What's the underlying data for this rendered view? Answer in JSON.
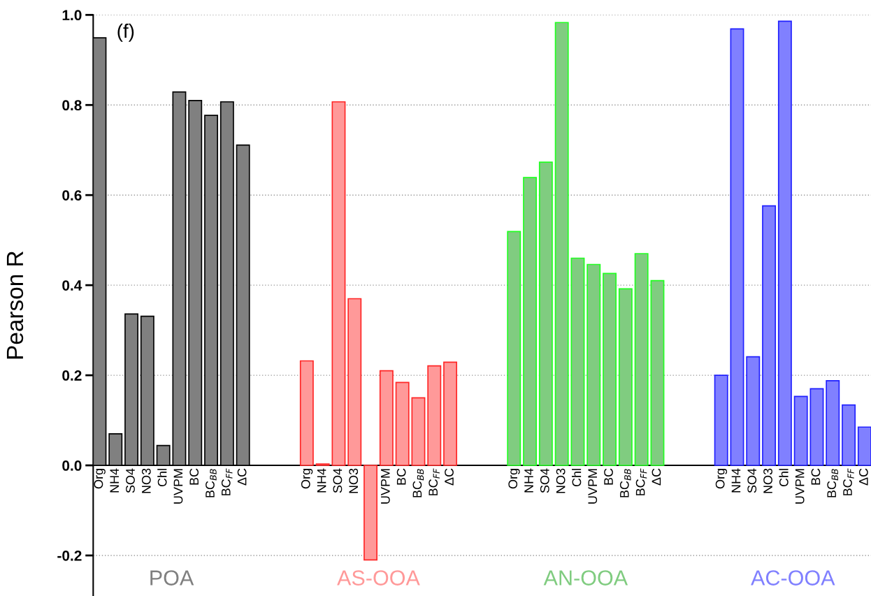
{
  "chart_data": {
    "type": "bar",
    "ylabel": "Pearson R",
    "annotations": [
      "(f)"
    ],
    "categories": [
      "Org",
      "NH4",
      "SO4",
      "NO3",
      "Chl",
      "UVPM",
      "BC",
      "BC$_{BB}$",
      "BC$_{FF}$",
      "ΔC",
      null,
      null,
      null,
      "Org",
      "NH4",
      "SO4",
      "NO3",
      null,
      "UVPM",
      "BC",
      "BC$_{BB}$",
      "BC$_{FF}$",
      "ΔC",
      null,
      null,
      null,
      "Org",
      "NH4",
      "SO4",
      "NO3",
      "Chl",
      "UVPM",
      "BC",
      "BC$_{BB}$",
      "BC$_{FF}$",
      "ΔC",
      null,
      null,
      null,
      "Org",
      "NH4",
      "SO4",
      "NO3",
      "Chl",
      "UVPM",
      "BC",
      "BC$_{BB}$",
      "BC$_{FF}$",
      "ΔC"
    ],
    "series": [
      {
        "name": "POA",
        "color": "#808080",
        "values": [
          0.949,
          0.07,
          0.336,
          0.331,
          0.044,
          0.829,
          0.81,
          0.777,
          0.807,
          0.711,
          null,
          null,
          null,
          null,
          null,
          null,
          null,
          null,
          null,
          null,
          null,
          null,
          null,
          null,
          null,
          null,
          null,
          null,
          null,
          null,
          null,
          null,
          null,
          null,
          null,
          null,
          null,
          null,
          null,
          null,
          null,
          null,
          null,
          null,
          null,
          null,
          null,
          null,
          null
        ]
      },
      {
        "name": "AS-OOA",
        "color": "#ff9999",
        "values": [
          null,
          null,
          null,
          null,
          null,
          null,
          null,
          null,
          null,
          null,
          null,
          null,
          null,
          0.232,
          0.003,
          0.807,
          0.37,
          -0.21,
          0.21,
          0.184,
          0.15,
          0.221,
          0.229,
          null,
          null,
          null,
          null,
          null,
          null,
          null,
          null,
          null,
          null,
          null,
          null,
          null,
          null,
          null,
          null,
          null,
          null,
          null,
          null,
          null,
          null,
          null,
          null,
          null,
          null
        ]
      },
      {
        "name": "AN-OOA",
        "color": "#80cc80",
        "values": [
          null,
          null,
          null,
          null,
          null,
          null,
          null,
          null,
          null,
          null,
          null,
          null,
          null,
          null,
          null,
          null,
          null,
          null,
          null,
          null,
          null,
          null,
          null,
          null,
          null,
          null,
          0.519,
          0.639,
          0.673,
          0.983,
          0.46,
          0.446,
          0.426,
          0.392,
          0.47,
          0.41,
          null,
          null,
          null,
          null,
          null,
          null,
          null,
          null,
          null,
          null,
          null,
          null,
          null
        ]
      },
      {
        "name": "AC-OOA",
        "color": "#8080ff",
        "values": [
          null,
          null,
          null,
          null,
          null,
          null,
          null,
          null,
          null,
          null,
          null,
          null,
          null,
          null,
          null,
          null,
          null,
          null,
          null,
          null,
          null,
          null,
          null,
          null,
          null,
          null,
          null,
          null,
          null,
          null,
          null,
          null,
          null,
          null,
          null,
          null,
          null,
          null,
          null,
          0.2,
          0.969,
          0.241,
          0.576,
          0.986,
          0.153,
          0.17,
          0.188,
          0.134,
          0.085
        ]
      }
    ],
    "ylim": [
      -0.29,
      1.0
    ],
    "yticks": [
      {
        "value": -0.2,
        "label": "-0.2"
      },
      {
        "value": 0,
        "label": "0.0"
      },
      {
        "value": 0.2,
        "label": "0.2"
      },
      {
        "value": 0.4,
        "label": "0.4"
      },
      {
        "value": 0.6,
        "label": "0.6"
      },
      {
        "value": 0.8,
        "label": "0.8"
      },
      {
        "value": 1.0,
        "label": "1.0"
      }
    ],
    "grid": "y"
  }
}
